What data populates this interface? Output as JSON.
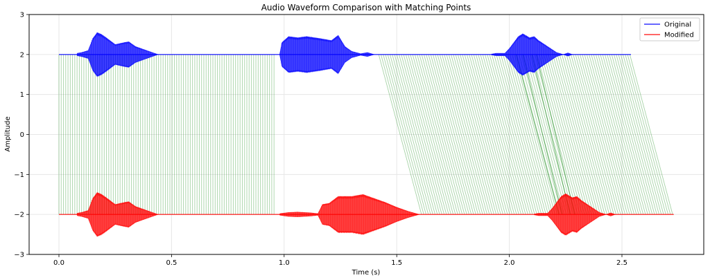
{
  "chart_data": {
    "type": "line",
    "title": "Audio Waveform Comparison with Matching Points",
    "xlabel": "Time (s)",
    "ylabel": "Amplitude",
    "xlim": [
      -0.13,
      2.86
    ],
    "ylim": [
      -3,
      3
    ],
    "xticks": [
      0.0,
      0.5,
      1.0,
      1.5,
      2.0,
      2.5
    ],
    "xtick_labels": [
      "0.0",
      "0.5",
      "1.0",
      "1.5",
      "2.0",
      "2.5"
    ],
    "yticks": [
      -3,
      -2,
      -1,
      0,
      1,
      2,
      3
    ],
    "ytick_labels": [
      "−3",
      "−2",
      "−1",
      "0",
      "1",
      "2",
      "3"
    ],
    "grid": true,
    "legend_position": "upper right",
    "series": [
      {
        "name": "Original",
        "color": "#0000ff",
        "offset": 2,
        "t_start": 0.0,
        "t_end": 2.54,
        "bursts": [
          {
            "t_start": 0.08,
            "t_end": 0.44,
            "envelope": [
              [
                0.08,
                0.03
              ],
              [
                0.1,
                0.05
              ],
              [
                0.13,
                0.1
              ],
              [
                0.15,
                0.4
              ],
              [
                0.17,
                0.55
              ],
              [
                0.19,
                0.5
              ],
              [
                0.21,
                0.42
              ],
              [
                0.25,
                0.25
              ],
              [
                0.29,
                0.3
              ],
              [
                0.31,
                0.32
              ],
              [
                0.34,
                0.2
              ],
              [
                0.38,
                0.12
              ],
              [
                0.42,
                0.04
              ],
              [
                0.44,
                0.0
              ]
            ]
          },
          {
            "t_start": 0.98,
            "t_end": 1.4,
            "envelope": [
              [
                0.98,
                0.0
              ],
              [
                0.99,
                0.3
              ],
              [
                1.02,
                0.45
              ],
              [
                1.06,
                0.42
              ],
              [
                1.1,
                0.45
              ],
              [
                1.16,
                0.4
              ],
              [
                1.21,
                0.35
              ],
              [
                1.24,
                0.48
              ],
              [
                1.27,
                0.2
              ],
              [
                1.3,
                0.08
              ],
              [
                1.34,
                0.02
              ],
              [
                1.37,
                0.05
              ],
              [
                1.4,
                0.0
              ]
            ]
          },
          {
            "t_start": 1.92,
            "t_end": 2.28,
            "envelope": [
              [
                1.92,
                0.01
              ],
              [
                1.94,
                0.03
              ],
              [
                1.98,
                0.03
              ],
              [
                2.0,
                0.15
              ],
              [
                2.02,
                0.3
              ],
              [
                2.04,
                0.45
              ],
              [
                2.06,
                0.52
              ],
              [
                2.09,
                0.42
              ],
              [
                2.11,
                0.45
              ],
              [
                2.13,
                0.35
              ],
              [
                2.17,
                0.2
              ],
              [
                2.21,
                0.05
              ],
              [
                2.24,
                0.0
              ],
              [
                2.26,
                0.04
              ],
              [
                2.28,
                0.0
              ]
            ]
          }
        ]
      },
      {
        "name": "Modified",
        "color": "#ff0000",
        "offset": -2,
        "t_start": 0.0,
        "t_end": 2.73,
        "bursts": [
          {
            "t_start": 0.08,
            "t_end": 0.44,
            "envelope": [
              [
                0.08,
                0.03
              ],
              [
                0.1,
                0.05
              ],
              [
                0.13,
                0.1
              ],
              [
                0.15,
                0.4
              ],
              [
                0.17,
                0.55
              ],
              [
                0.19,
                0.5
              ],
              [
                0.21,
                0.42
              ],
              [
                0.25,
                0.25
              ],
              [
                0.29,
                0.3
              ],
              [
                0.31,
                0.32
              ],
              [
                0.34,
                0.2
              ],
              [
                0.38,
                0.12
              ],
              [
                0.42,
                0.04
              ],
              [
                0.44,
                0.0
              ]
            ]
          },
          {
            "t_start": 0.98,
            "t_end": 1.6,
            "envelope": [
              [
                0.98,
                0.02
              ],
              [
                1.02,
                0.05
              ],
              [
                1.06,
                0.06
              ],
              [
                1.12,
                0.04
              ],
              [
                1.15,
                0.02
              ],
              [
                1.17,
                0.25
              ],
              [
                1.2,
                0.28
              ],
              [
                1.24,
                0.45
              ],
              [
                1.3,
                0.45
              ],
              [
                1.35,
                0.5
              ],
              [
                1.4,
                0.4
              ],
              [
                1.45,
                0.3
              ],
              [
                1.5,
                0.18
              ],
              [
                1.55,
                0.08
              ],
              [
                1.6,
                0.0
              ]
            ]
          },
          {
            "t_start": 2.11,
            "t_end": 2.47,
            "envelope": [
              [
                2.11,
                0.01
              ],
              [
                2.13,
                0.03
              ],
              [
                2.17,
                0.03
              ],
              [
                2.19,
                0.15
              ],
              [
                2.21,
                0.3
              ],
              [
                2.23,
                0.45
              ],
              [
                2.25,
                0.52
              ],
              [
                2.28,
                0.42
              ],
              [
                2.3,
                0.45
              ],
              [
                2.32,
                0.35
              ],
              [
                2.36,
                0.2
              ],
              [
                2.4,
                0.05
              ],
              [
                2.43,
                0.0
              ],
              [
                2.45,
                0.04
              ],
              [
                2.47,
                0.0
              ]
            ]
          }
        ]
      }
    ],
    "matching_lines": {
      "color": "#008000",
      "alpha": 0.35,
      "groups": [
        {
          "orig_start": 0.0,
          "orig_end": 0.955,
          "mod_start": 0.0,
          "mod_end": 0.955,
          "count": 96
        },
        {
          "orig_start": 1.42,
          "orig_end": 2.535,
          "mod_start": 1.61,
          "mod_end": 2.725,
          "count": 112
        }
      ],
      "cross_outliers": [
        {
          "orig": 2.03,
          "mod": 2.22
        },
        {
          "orig": 2.06,
          "mod": 2.235
        },
        {
          "orig": 2.1,
          "mod": 2.27
        },
        {
          "orig": 2.12,
          "mod": 2.29
        }
      ]
    }
  },
  "legend": {
    "items": [
      {
        "label": "Original",
        "color": "#0000ff"
      },
      {
        "label": "Modified",
        "color": "#ff0000"
      }
    ]
  }
}
